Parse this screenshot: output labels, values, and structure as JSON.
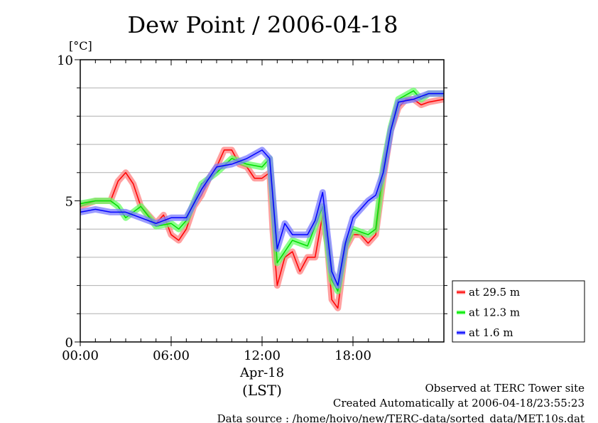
{
  "chart_data": {
    "type": "line",
    "title": "Dew Point / 2006-04-18",
    "ylabel": "[°C]",
    "xlabel": "(LST)",
    "date_label": "Apr-18",
    "ylim": [
      0,
      10
    ],
    "xlim": [
      0,
      24
    ],
    "yticks": [
      {
        "v": 0,
        "label": "0"
      },
      {
        "v": 5,
        "label": "5"
      },
      {
        "v": 10,
        "label": "10"
      }
    ],
    "xticks": [
      {
        "v": 0,
        "label": "00:00"
      },
      {
        "v": 6,
        "label": "06:00"
      },
      {
        "v": 12,
        "label": "12:00"
      },
      {
        "v": 18,
        "label": "18:00"
      }
    ],
    "grid": true,
    "legend_position": "bottom-right-outside",
    "series": [
      {
        "name": "at 29.5 m",
        "color": "#ff0000",
        "band": "#ff8080",
        "x": [
          0,
          1,
          2,
          2.5,
          3,
          3.5,
          4,
          4.5,
          5,
          5.5,
          6,
          6.5,
          7,
          7.5,
          8,
          8.5,
          9,
          9.5,
          10,
          10.5,
          11,
          11.5,
          12,
          12.5,
          12.7,
          13,
          13.5,
          14,
          14.5,
          15,
          15.5,
          16,
          16.3,
          16.6,
          17,
          17.5,
          18,
          18.5,
          19,
          19.5,
          20,
          20.5,
          21,
          21.5,
          22,
          22.5,
          23,
          24
        ],
        "y": [
          4.8,
          5.0,
          5.0,
          5.7,
          6.0,
          5.6,
          4.8,
          4.5,
          4.2,
          4.5,
          3.8,
          3.6,
          4.0,
          4.8,
          5.2,
          5.8,
          6.2,
          6.8,
          6.8,
          6.3,
          6.2,
          5.8,
          5.8,
          6.0,
          4.0,
          2.0,
          3.0,
          3.2,
          2.5,
          3.0,
          3.0,
          4.5,
          3.5,
          1.5,
          1.2,
          3.3,
          3.8,
          3.8,
          3.5,
          3.8,
          5.8,
          7.5,
          8.3,
          8.6,
          8.6,
          8.4,
          8.5,
          8.6
        ]
      },
      {
        "name": "at 12.3 m",
        "color": "#00dd00",
        "band": "#66ff66",
        "x": [
          0,
          1,
          2,
          2.5,
          3,
          4,
          5,
          6,
          6.5,
          7,
          8,
          9,
          10,
          11,
          12,
          12.5,
          13,
          14,
          15,
          16,
          16.6,
          17,
          17.5,
          18,
          19,
          19.5,
          20,
          20.5,
          21,
          22,
          22.5,
          23,
          24
        ],
        "y": [
          4.9,
          5.0,
          5.0,
          4.8,
          4.4,
          4.8,
          4.1,
          4.2,
          4.0,
          4.3,
          5.6,
          6.0,
          6.5,
          6.3,
          6.2,
          6.5,
          2.8,
          3.6,
          3.4,
          4.8,
          2.2,
          1.8,
          3.4,
          4.0,
          3.8,
          4.0,
          6.2,
          7.6,
          8.6,
          8.9,
          8.6,
          8.8,
          8.8
        ]
      },
      {
        "name": "at 1.6 m",
        "color": "#0000ff",
        "band": "#7a7aff",
        "x": [
          0,
          1,
          2,
          3,
          4,
          5,
          6,
          7,
          8,
          9,
          10,
          11,
          12,
          12.5,
          13,
          13.5,
          14,
          15,
          15.5,
          16,
          16.6,
          17,
          17.5,
          18,
          19,
          19.5,
          20,
          20.5,
          21,
          22,
          23,
          24
        ],
        "y": [
          4.6,
          4.7,
          4.6,
          4.6,
          4.4,
          4.2,
          4.4,
          4.4,
          5.4,
          6.2,
          6.3,
          6.5,
          6.8,
          6.5,
          3.3,
          4.2,
          3.8,
          3.8,
          4.3,
          5.3,
          2.5,
          2.0,
          3.5,
          4.4,
          5.0,
          5.2,
          6.0,
          7.5,
          8.5,
          8.6,
          8.8,
          8.8
        ]
      }
    ]
  },
  "footer": {
    "observed": "Observed at TERC Tower site",
    "created": "Created Automatically at 2006-04-18/23:55:23",
    "source": "Data source : /home/hoivo/new/TERC-data/sorted_data/MET.10s.dat"
  }
}
